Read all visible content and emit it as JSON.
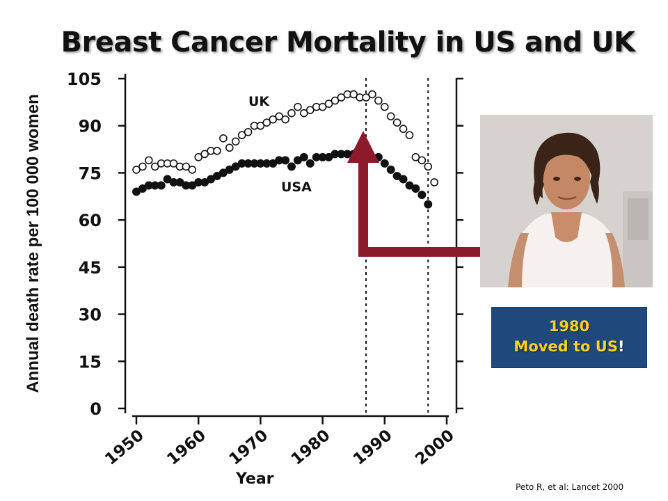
{
  "slide": {
    "title": "Breast Cancer Mortality in US and UK",
    "citation": "Peto R, et al: Lancet 2000",
    "callout": {
      "year": "1980",
      "text": "Moved to US",
      "exclaim": "!"
    },
    "photo_description_icon": "woman-portrait-photo"
  },
  "colors": {
    "arrow": "#8b1a2b",
    "callout_bg": "#1f497d",
    "callout_text": "#ffd21a"
  },
  "chart_data": {
    "type": "scatter",
    "title": "",
    "xlabel": "Year",
    "ylabel": "Annual death rate per 100 000 women",
    "xlim": [
      1950,
      2000
    ],
    "ylim": [
      0,
      105
    ],
    "x_ticks": [
      "1950",
      "1960",
      "1970",
      "1980",
      "1990",
      "2000"
    ],
    "y_ticks": [
      "0",
      "15",
      "30",
      "45",
      "60",
      "75",
      "90",
      "105"
    ],
    "vertical_lines": [
      1987,
      1997
    ],
    "grid": false,
    "series": [
      {
        "name": "UK",
        "marker": "open-circle",
        "x": [
          1950,
          1951,
          1952,
          1953,
          1954,
          1955,
          1956,
          1957,
          1958,
          1959,
          1960,
          1961,
          1962,
          1963,
          1964,
          1965,
          1966,
          1967,
          1968,
          1969,
          1970,
          1971,
          1972,
          1973,
          1974,
          1975,
          1976,
          1977,
          1978,
          1979,
          1980,
          1981,
          1982,
          1983,
          1984,
          1985,
          1986,
          1987,
          1988,
          1989,
          1990,
          1991,
          1992,
          1993,
          1994,
          1995,
          1996,
          1997,
          1998
        ],
        "values": [
          76,
          77,
          79,
          77,
          78,
          78,
          78,
          77,
          77,
          76,
          80,
          81,
          82,
          82,
          86,
          83,
          85,
          87,
          88,
          90,
          90,
          91,
          92,
          93,
          92,
          94,
          96,
          94,
          95,
          96,
          96,
          97,
          98,
          99,
          100,
          100,
          99,
          99,
          100,
          98,
          96,
          93,
          91,
          89,
          87,
          80,
          79,
          77,
          72
        ]
      },
      {
        "name": "USA",
        "marker": "filled-circle",
        "x": [
          1950,
          1951,
          1952,
          1953,
          1954,
          1955,
          1956,
          1957,
          1958,
          1959,
          1960,
          1961,
          1962,
          1963,
          1964,
          1965,
          1966,
          1967,
          1968,
          1969,
          1970,
          1971,
          1972,
          1973,
          1974,
          1975,
          1976,
          1977,
          1978,
          1979,
          1980,
          1981,
          1982,
          1983,
          1984,
          1985,
          1986,
          1987,
          1988,
          1989,
          1990,
          1991,
          1992,
          1993,
          1994,
          1995,
          1996,
          1997
        ],
        "values": [
          69,
          70,
          71,
          71,
          71,
          73,
          72,
          72,
          71,
          71,
          72,
          72,
          73,
          74,
          75,
          76,
          77,
          78,
          78,
          78,
          78,
          78,
          78,
          79,
          79,
          77,
          79,
          80,
          78,
          80,
          80,
          80,
          81,
          81,
          81,
          81,
          81,
          81,
          80,
          80,
          78,
          76,
          74,
          73,
          71,
          70,
          68,
          65
        ]
      }
    ],
    "annotations": [
      "UK",
      "USA"
    ]
  }
}
